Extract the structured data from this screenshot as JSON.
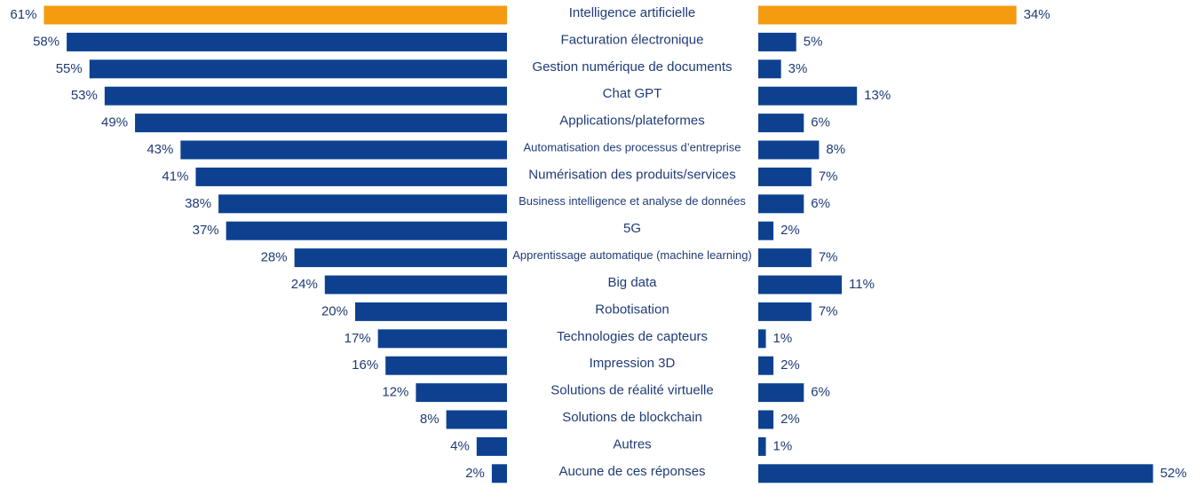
{
  "chart_data": {
    "type": "butterfly-bar",
    "categories": [
      "Intelligence artificielle",
      "Facturation électronique",
      "Gestion numérique de documents",
      "Chat GPT",
      "Applications/plateformes",
      "Automatisation des processus d’entreprise",
      "Numérisation des produits/services",
      "Business intelligence et analyse de données",
      "5G",
      "Apprentissage automatique (machine learning)",
      "Big data",
      "Robotisation",
      "Technologies de capteurs",
      "Impression 3D",
      "Solutions de réalité virtuelle",
      "Solutions de blockchain",
      "Autres",
      "Aucune de ces réponses"
    ],
    "series": [
      {
        "side": "left",
        "colors": [
          "#f59b0f",
          "#0d4190",
          "#0d4190",
          "#0d4190",
          "#0d4190",
          "#0d4190",
          "#0d4190",
          "#0d4190",
          "#0d4190",
          "#0d4190",
          "#0d4190",
          "#0d4190",
          "#0d4190",
          "#0d4190",
          "#0d4190",
          "#0d4190",
          "#0d4190",
          "#0d4190"
        ],
        "values": [
          61,
          58,
          55,
          53,
          49,
          43,
          41,
          38,
          37,
          28,
          24,
          20,
          17,
          16,
          12,
          8,
          4,
          2
        ],
        "value_labels": [
          "61%",
          "58%",
          "55%",
          "53%",
          "49%",
          "43%",
          "41%",
          "38%",
          "37%",
          "28%",
          "24%",
          "20%",
          "17%",
          "16%",
          "12%",
          "8%",
          "4%",
          "2%"
        ]
      },
      {
        "side": "right",
        "colors": [
          "#f59b0f",
          "#0d4190",
          "#0d4190",
          "#0d4190",
          "#0d4190",
          "#0d4190",
          "#0d4190",
          "#0d4190",
          "#0d4190",
          "#0d4190",
          "#0d4190",
          "#0d4190",
          "#0d4190",
          "#0d4190",
          "#0d4190",
          "#0d4190",
          "#0d4190",
          "#0d4190"
        ],
        "values": [
          34,
          5,
          3,
          13,
          6,
          8,
          7,
          6,
          2,
          7,
          11,
          7,
          1,
          2,
          6,
          2,
          1,
          52
        ],
        "value_labels": [
          "34%",
          "5%",
          "3%",
          "13%",
          "6%",
          "8%",
          "7%",
          "6%",
          "2%",
          "7%",
          "11%",
          "7%",
          "1%",
          "2%",
          "6%",
          "2%",
          "1%",
          "52%"
        ]
      }
    ]
  }
}
